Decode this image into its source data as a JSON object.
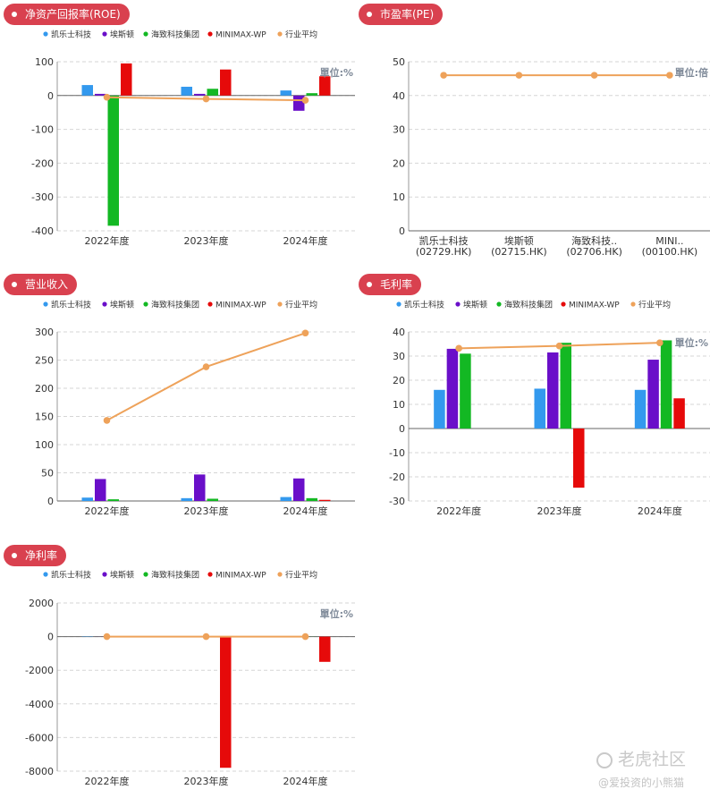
{
  "colors": {
    "s1": "#3399ee",
    "s2": "#6a0fc9",
    "s3": "#13b823",
    "s4": "#e60a0a",
    "avg": "#eea25a",
    "pill": "#d9414f"
  },
  "series_names": [
    "凯乐士科技",
    "埃斯顿",
    "海致科技集团",
    "MINIMAX-WP",
    "行业平均"
  ],
  "watermark": {
    "brand": "老虎社区",
    "user": "@爱投资的小熊猫"
  },
  "chart_data": [
    {
      "id": "roe",
      "type": "bar",
      "title": "净资产回报率(ROE)",
      "unit": "單位:%",
      "categories": [
        "2022年度",
        "2023年度",
        "2024年度"
      ],
      "ylim": [
        -400,
        100
      ],
      "yticks": [
        "100",
        "0",
        "-100",
        "-200",
        "-300",
        "-400"
      ],
      "series": [
        {
          "name": "凯乐士科技",
          "values": [
            31,
            26,
            15
          ]
        },
        {
          "name": "埃斯顿",
          "values": [
            5,
            5,
            -45
          ]
        },
        {
          "name": "海致科技集团",
          "values": [
            -385,
            20,
            7
          ]
        },
        {
          "name": "MINIMAX-WP",
          "values": [
            95,
            77,
            57
          ]
        }
      ],
      "line": {
        "name": "行业平均",
        "values": [
          -5,
          -10,
          -14
        ]
      }
    },
    {
      "id": "pe",
      "type": "line",
      "title": "市盈率(PE)",
      "unit": "單位:倍",
      "categories": [
        "凯乐士科技\n(02729.HK)",
        "埃斯顿\n(02715.HK)",
        "海致科技..\n(02706.HK)",
        "MINI..\n(00100.HK)"
      ],
      "ylim": [
        0,
        50
      ],
      "yticks": [
        "50",
        "40",
        "30",
        "20",
        "10",
        "0"
      ],
      "line": {
        "values": [
          46,
          46,
          46,
          46
        ]
      }
    },
    {
      "id": "rev",
      "type": "bar",
      "title": "营业收入",
      "unit": "",
      "categories": [
        "2022年度",
        "2023年度",
        "2024年度"
      ],
      "ylim": [
        0,
        300
      ],
      "yticks": [
        "300",
        "250",
        "200",
        "150",
        "100",
        "50",
        "0"
      ],
      "series": [
        {
          "name": "凯乐士科技",
          "values": [
            6,
            5,
            7
          ]
        },
        {
          "name": "埃斯顿",
          "values": [
            39,
            47,
            40
          ]
        },
        {
          "name": "海致科技集团",
          "values": [
            3,
            4,
            5
          ]
        },
        {
          "name": "MINIMAX-WP",
          "values": [
            0,
            0,
            2
          ]
        }
      ],
      "line": {
        "name": "行业平均",
        "values": [
          143,
          238,
          298
        ]
      }
    },
    {
      "id": "gm",
      "type": "bar",
      "title": "毛利率",
      "unit": "單位:%",
      "categories": [
        "2022年度",
        "2023年度",
        "2024年度"
      ],
      "ylim": [
        -30,
        40
      ],
      "yticks": [
        "40",
        "30",
        "20",
        "10",
        "0",
        "-10",
        "-20",
        "-30"
      ],
      "series": [
        {
          "name": "凯乐士科技",
          "values": [
            16,
            16.5,
            16
          ]
        },
        {
          "name": "埃斯顿",
          "values": [
            33,
            31.5,
            28.5
          ]
        },
        {
          "name": "海致科技集团",
          "values": [
            31,
            35.5,
            36.5
          ]
        },
        {
          "name": "MINIMAX-WP",
          "values": [
            0,
            -24.5,
            12.5
          ]
        }
      ],
      "line": {
        "name": "行业平均",
        "values": [
          33.2,
          34.2,
          35.5
        ]
      }
    },
    {
      "id": "npm",
      "type": "bar",
      "title": "净利率",
      "unit": "單位:%",
      "categories": [
        "2022年度",
        "2023年度",
        "2024年度"
      ],
      "ylim": [
        -8000,
        2000
      ],
      "yticks": [
        "2000",
        "0",
        "-2000",
        "-4000",
        "-6000",
        "-8000"
      ],
      "series": [
        {
          "name": "凯乐士科技",
          "values": [
            -20,
            -20,
            -15
          ]
        },
        {
          "name": "埃斯顿",
          "values": [
            3,
            5,
            -5
          ]
        },
        {
          "name": "海致科技集团",
          "values": [
            -5,
            -5,
            -5
          ]
        },
        {
          "name": "MINIMAX-WP",
          "values": [
            0,
            -7800,
            -1500
          ]
        }
      ],
      "line": {
        "name": "行业平均",
        "values": [
          0,
          0,
          0
        ]
      }
    }
  ]
}
